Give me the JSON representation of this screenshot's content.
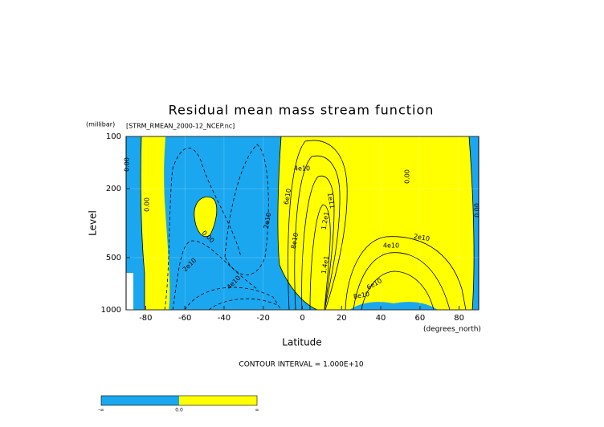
{
  "chart_data": {
    "type": "contour",
    "title": "Residual mean mass stream function",
    "subtitle": "[STRM_RMEAN_2000-12_NCEP.nc]",
    "y_unit": "(millibar)",
    "x_unit": "(degrees_north)",
    "xlabel": "Latitude",
    "ylabel": "Level",
    "xlim": [
      -90,
      90
    ],
    "ylim": [
      1000,
      100
    ],
    "yscale": "log",
    "xticks": [
      -80,
      -60,
      -40,
      -20,
      0,
      20,
      40,
      60,
      80
    ],
    "yticks": [
      100,
      200,
      500,
      1000
    ],
    "contour_labels": [
      "0.00",
      "0.00",
      "0.00",
      "0.00",
      "0.00",
      "2e10",
      "4e10",
      "2e10",
      "4e10",
      "6e10",
      "8e10",
      "1e11",
      "1.2e1",
      "1.4e1",
      "4e10",
      "2e10",
      "6e10",
      "8e10"
    ],
    "note": "CONTOUR INTERVAL = 1.000E+10",
    "colorbar": {
      "labels": [
        "-∞",
        "0.0",
        "∞"
      ],
      "colors": [
        "#1aa7ef",
        "#ffff00"
      ]
    }
  }
}
